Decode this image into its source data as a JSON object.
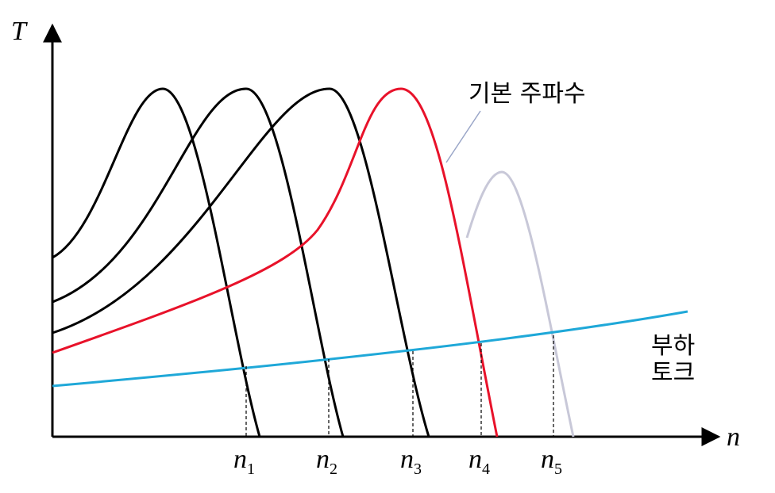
{
  "axes": {
    "y_label": "T",
    "x_label": "n"
  },
  "ticks": [
    {
      "base": "n",
      "sub": "1"
    },
    {
      "base": "n",
      "sub": "2"
    },
    {
      "base": "n",
      "sub": "3"
    },
    {
      "base": "n",
      "sub": "4"
    },
    {
      "base": "n",
      "sub": "5"
    }
  ],
  "annotations": {
    "fundamental": "기본 주파수",
    "load_torque": [
      "부하",
      "토크"
    ]
  }
}
